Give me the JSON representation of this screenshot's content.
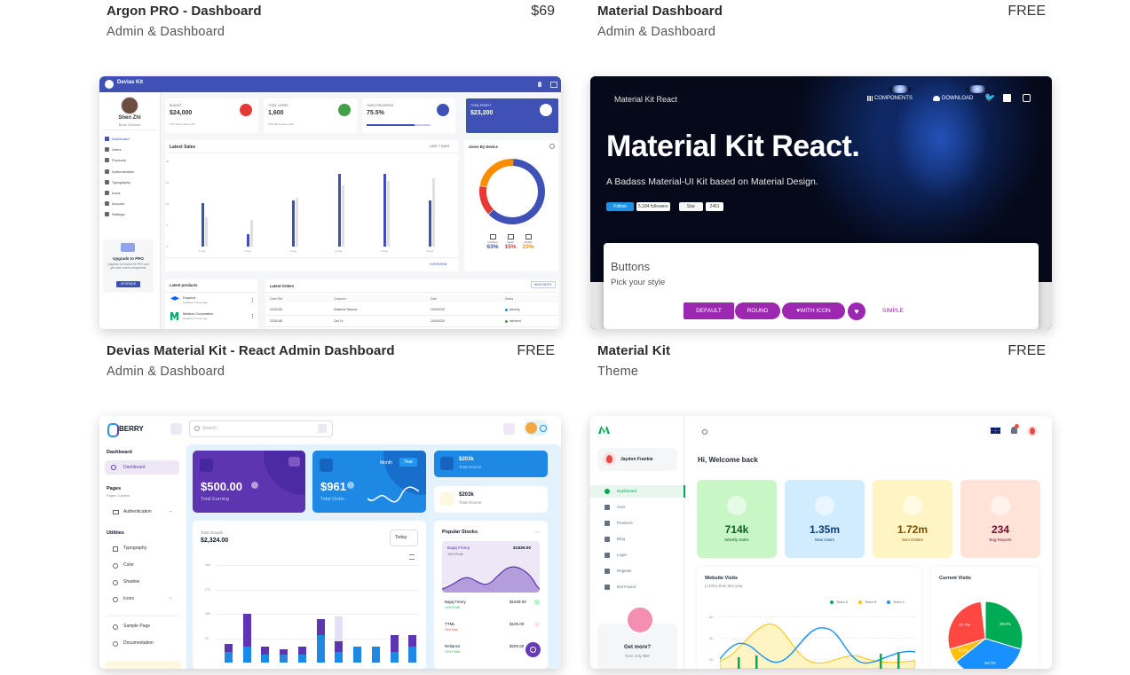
{
  "products": [
    {
      "title": "Argon PRO - Dashboard",
      "price": "$69",
      "category": "Admin & Dashboard"
    },
    {
      "title": "Material Dashboard",
      "price": "FREE",
      "category": "Admin & Dashboard"
    },
    {
      "title": "Devias Material Kit - React Admin Dashboard",
      "price": "FREE",
      "category": "Admin & Dashboard"
    },
    {
      "title": "Material Kit",
      "price": "FREE",
      "category": "Theme"
    }
  ],
  "devias": {
    "brand": "Devias Kit",
    "user_name": "Shen Zhi",
    "user_role": "Brain Director",
    "nav": [
      "Dashboard",
      "Users",
      "Products",
      "Authentication",
      "Typography",
      "Icons",
      "Account",
      "Settings"
    ],
    "upgrade_title": "Upgrade to PRO",
    "upgrade_text": "Upgrade to Devias Kit PRO and get even more components",
    "upgrade_button": "UPGRADE",
    "stats": [
      {
        "label": "BUDGET",
        "value": "$24,000",
        "note": "12%  Since last month",
        "color": "#e53935"
      },
      {
        "label": "TOTAL USERS",
        "value": "1,600",
        "note": "16%  Since last month",
        "color": "#43a047"
      },
      {
        "label": "TASKS PROGRESS",
        "value": "75.5%",
        "progress": 0.755,
        "color": "#3f51b5"
      },
      {
        "label": "TOTAL PROFIT",
        "value": "$23,200",
        "color": "#ffffff"
      }
    ],
    "sales_title": "Latest Sales",
    "sales_range": "LAST 7 DAYS",
    "sales_days": [
      "1 Aug",
      "2 Aug",
      "3 Aug",
      "4 Aug",
      "5 Aug",
      "6 Aug"
    ],
    "sales_this_year": [
      18,
      5,
      19,
      30,
      30,
      19
    ],
    "sales_last_year": [
      12,
      11,
      20,
      25,
      27,
      28
    ],
    "sales_yticks": [
      "20",
      "15",
      "10",
      "5",
      "0"
    ],
    "overview": "OVERVIEW",
    "device_title": "Users By Device",
    "devices": [
      {
        "label": "Desktop",
        "value": "63%",
        "share": 63,
        "color": "#3f51b5"
      },
      {
        "label": "Tablet",
        "value": "15%",
        "share": 15,
        "color": "#e53935"
      },
      {
        "label": "Mobile",
        "value": "23%",
        "share": 23,
        "color": "#fb8c00"
      }
    ],
    "products_title": "Latest products",
    "latest_products": [
      {
        "name": "Dropbox",
        "updated": "Updated 2 hours ago"
      },
      {
        "name": "Medium Corporation",
        "updated": "Updated 2 hours ago"
      }
    ],
    "orders_title": "Latest Orders",
    "new_entry": "NEW ENTRY",
    "order_cols": [
      "Order Ref",
      "Customer",
      "Date",
      "Status"
    ],
    "orders": [
      {
        "ref": "CDD1049",
        "customer": "Ekaterina Tankova",
        "date": "12/04/2019",
        "status": "pending"
      },
      {
        "ref": "CDD1048",
        "customer": "Cao Yu",
        "date": "12/04/2019",
        "status": "delivered"
      }
    ]
  },
  "mkr": {
    "brand": "Material Kit React",
    "nav": [
      "COMPONENTS",
      "DOWNLOAD"
    ],
    "headline": "Material Kit React.",
    "subtitle": "A Badass Material-UI Kit based on Material Design.",
    "follow": "Follow",
    "followers": "5,184 followers",
    "star": "Star",
    "stars": "2461",
    "section_title": "Buttons",
    "section_subtitle": "Pick your style",
    "buttons": [
      "DEFAULT",
      "ROUND",
      "WITH ICON",
      "SIMPLE"
    ],
    "accent": "#9c27b0"
  },
  "berry": {
    "brand": "BERRY",
    "search": "Search",
    "nav_group1": "Dashboard",
    "nav_active": "Dashboard",
    "nav_group2": "Pages",
    "nav_group2_caption": "Pages Caption",
    "nav_auth": "Authentication",
    "nav_group3": "Utilities",
    "nav_utils": [
      "Typography",
      "Color",
      "Shadow",
      "Icons"
    ],
    "nav_other": [
      "Sample Page",
      "Documentation"
    ],
    "earning_value": "$500.00",
    "earning_label": "Total Earning",
    "toggle_month": "Month",
    "toggle_year": "Year",
    "order_value": "$961",
    "order_label": "Total Order",
    "income_cards": [
      {
        "value": "$203k",
        "label": "Total Income"
      },
      {
        "value": "$203k",
        "label": "Total Income"
      }
    ],
    "growth_label": "Total Growth",
    "growth_value": "$2,324.00",
    "growth_range": "Today",
    "growth_yticks": [
      "360",
      "270",
      "180",
      "90"
    ],
    "growth_stacks": [
      [
        40,
        30,
        0,
        0
      ],
      [
        60,
        120,
        0,
        0
      ],
      [
        30,
        30,
        0,
        0
      ],
      [
        30,
        20,
        0,
        0
      ],
      [
        30,
        30,
        0,
        0
      ],
      [
        100,
        60,
        0,
        0
      ],
      [
        40,
        40,
        90,
        0
      ],
      [
        60,
        0,
        0,
        0
      ],
      [
        60,
        0,
        0,
        0
      ],
      [
        40,
        60,
        0,
        0
      ],
      [
        60,
        40,
        0,
        0
      ]
    ],
    "stocks_title": "Popular Stocks",
    "featured_stock": {
      "name": "Bajaj Finery",
      "change": "10% Profit",
      "price": "$1839.00"
    },
    "stocks": [
      {
        "name": "Bajaj Finery",
        "change": "10% Profit",
        "price": "$1839.00",
        "up": true
      },
      {
        "name": "TTML",
        "change": "10% loss",
        "price": "$100.00",
        "up": false
      },
      {
        "name": "Reliance",
        "change": "10% Profit",
        "price": "$200.00",
        "up": true
      }
    ]
  },
  "minimal": {
    "user": "Jaydon Frankie",
    "nav": [
      "Dashboard",
      "User",
      "Products",
      "Blog",
      "Login",
      "Register",
      "Not Found"
    ],
    "welcome": "Hi, Welcome back",
    "stats": [
      {
        "value": "714k",
        "label": "Weekly Sales",
        "bg": "#c8f7c5",
        "color": "#0a5e2a"
      },
      {
        "value": "1.35m",
        "label": "New Users",
        "bg": "#d0ecfe",
        "color": "#0c3e7a"
      },
      {
        "value": "1.72m",
        "label": "Item Orders",
        "bg": "#fff4c4",
        "color": "#7a4f01"
      },
      {
        "value": "234",
        "label": "Bug Reports",
        "bg": "#ffe3d8",
        "color": "#7a0c2e"
      }
    ],
    "visits_title": "Website Visits",
    "visits_subtitle": "(+43%) than last year",
    "legend": [
      {
        "name": "Team A",
        "color": "#00ab55"
      },
      {
        "name": "Team B",
        "color": "#ffc107"
      },
      {
        "name": "Team C",
        "color": "#1890ff"
      }
    ],
    "visits_yticks": [
      "60",
      "40",
      "20"
    ],
    "current_title": "Current Visits",
    "pie": [
      {
        "value": "29.6%",
        "share": 29.6,
        "color": "#00ab55"
      },
      {
        "value": "34.7%",
        "share": 34.7,
        "color": "#1890ff"
      },
      {
        "value": "6.1%",
        "share": 6.1,
        "color": "#ffc107"
      },
      {
        "value": "27.7%",
        "share": 27.7,
        "color": "#ff4842"
      }
    ],
    "promo_title": "Get more?",
    "promo_sub": "from only $69"
  }
}
